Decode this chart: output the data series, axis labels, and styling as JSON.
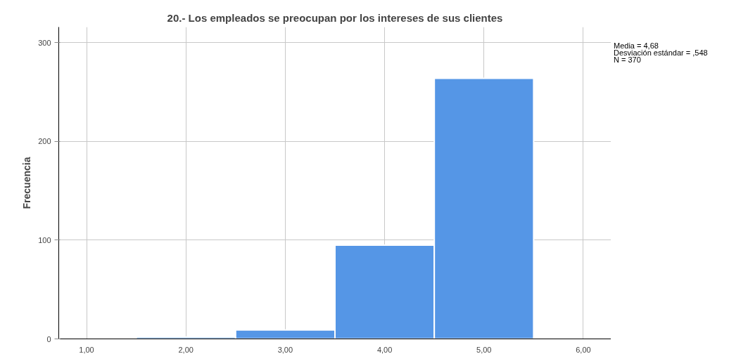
{
  "chart_data": {
    "type": "histogram",
    "title": "20.- Los empleados se preocupan por los intereses de sus clientes",
    "ylabel": "Frecuencia",
    "bins": [
      1.5,
      2.5,
      3.5,
      4.5,
      5.5
    ],
    "values": [
      2,
      9,
      95,
      264
    ],
    "color": "#5596e6",
    "xlim": [
      0.72,
      6.28
    ],
    "xticks": [
      {
        "value": 1,
        "label": "1,00"
      },
      {
        "value": 2,
        "label": "2,00"
      },
      {
        "value": 3,
        "label": "3,00"
      },
      {
        "value": 4,
        "label": "4,00"
      },
      {
        "value": 5,
        "label": "5,00"
      },
      {
        "value": 6,
        "label": "6,00"
      }
    ],
    "ylim": [
      0,
      316
    ],
    "yticks": [
      0,
      100,
      200,
      300
    ],
    "grid": true,
    "annotations": [
      "Media = 4,68",
      "Desviación estándar = ,548",
      "N = 370"
    ]
  }
}
